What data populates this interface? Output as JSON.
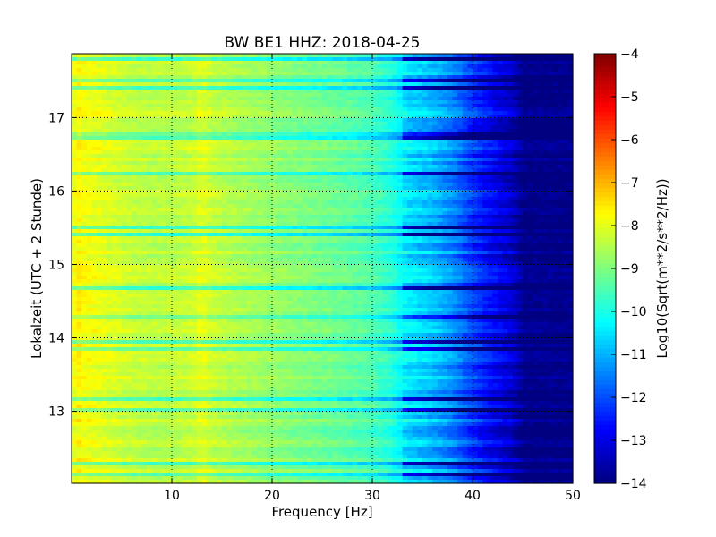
{
  "chart_data": {
    "type": "heatmap",
    "title": "BW BE1 HHZ: 2018-04-25",
    "xlabel": "Frequency [Hz]",
    "ylabel": "Lokalzeit (UTC + 2 Stunde)",
    "colorbar_label": "Log10(Sqrt(m**2/s**2/Hz))",
    "xlim": [
      0,
      50
    ],
    "ylim": [
      17.87,
      12.02
    ],
    "x_ticks": [
      10,
      20,
      30,
      40,
      50
    ],
    "y_ticks": [
      13,
      14,
      15,
      16,
      17
    ],
    "colorbar_range": [
      -14,
      -4
    ],
    "colorbar_ticks": [
      -4,
      -5,
      -6,
      -7,
      -8,
      -9,
      -10,
      -11,
      -12,
      -13,
      -14
    ],
    "colormap": "jet",
    "grid": true,
    "profile": {
      "description_x": "Frequency [Hz]",
      "freq": [
        0,
        0.5,
        1,
        2,
        4,
        6,
        8,
        10,
        12,
        13,
        14,
        16,
        20,
        25,
        28,
        30,
        32,
        33.5,
        36,
        38,
        40,
        42,
        44,
        45,
        50
      ],
      "log10_amplitude": [
        -8.2,
        -7.6,
        -7.8,
        -7.9,
        -8.1,
        -8.3,
        -8.4,
        -8.4,
        -8.3,
        -8.0,
        -8.3,
        -8.5,
        -8.8,
        -9.1,
        -9.3,
        -9.5,
        -9.9,
        -10.5,
        -10.9,
        -11.4,
        -12.2,
        -12.8,
        -13.3,
        -13.9,
        -13.9
      ]
    }
  }
}
